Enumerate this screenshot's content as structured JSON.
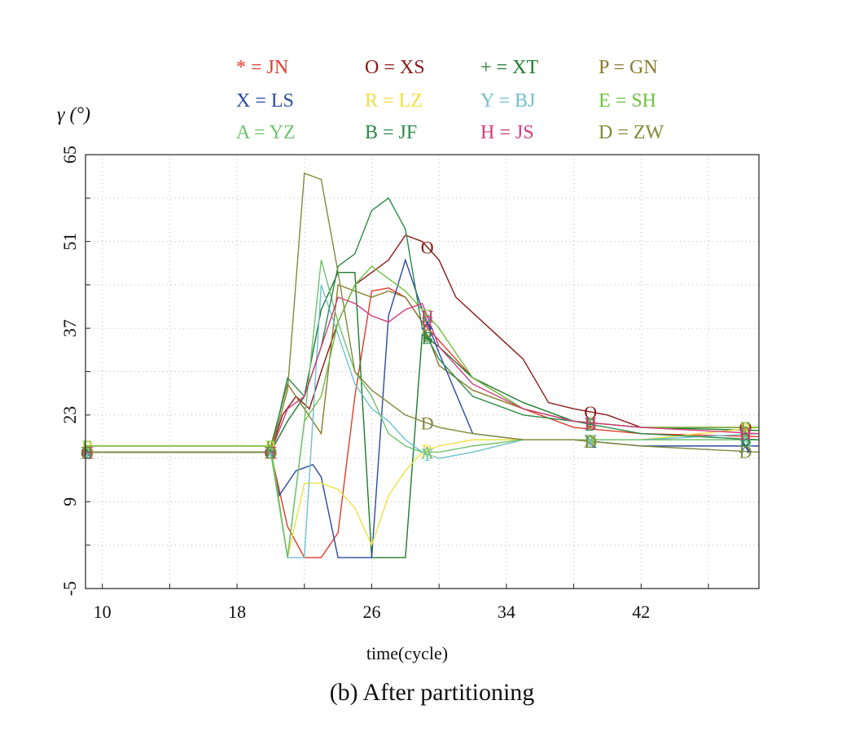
{
  "chart_data": {
    "type": "line",
    "title": "",
    "caption": "(b) After partitioning",
    "xlabel": "time(cycle)",
    "ylabel": "γ (°)",
    "xlim": [
      9,
      49
    ],
    "ylim": [
      -5,
      65
    ],
    "xticks": [
      10,
      18,
      26,
      34,
      42
    ],
    "yticks": [
      -5,
      9,
      23,
      37,
      51,
      65
    ],
    "grid": true,
    "legend_placement": "top",
    "series": [
      {
        "name": "JN",
        "marker": "*",
        "color": "#e03a2a",
        "x": [
          9,
          10,
          19,
          20,
          21,
          22,
          23,
          24,
          25,
          26,
          27,
          28,
          29,
          30,
          32,
          35,
          38,
          42,
          49
        ],
        "y": [
          17,
          17,
          17,
          17,
          5,
          0,
          0,
          4,
          26,
          43,
          43.5,
          42,
          38,
          35,
          29,
          24,
          21,
          20,
          19.5
        ]
      },
      {
        "name": "XS",
        "marker": "O",
        "color": "#8a1a1a",
        "x": [
          9,
          10,
          19,
          20,
          20.7,
          21.5,
          22.3,
          23,
          24,
          25,
          26,
          27,
          28,
          29,
          30,
          31,
          33,
          35,
          36.5,
          38,
          40,
          42,
          49
        ],
        "y": [
          17,
          17,
          17,
          17,
          23,
          26,
          24,
          30,
          38,
          44,
          46,
          48,
          52,
          51,
          48,
          42,
          37,
          32,
          25,
          24,
          23,
          21,
          21
        ]
      },
      {
        "name": "XT",
        "marker": "+",
        "color": "#1e7a2e",
        "x": [
          9,
          10,
          19,
          20,
          21,
          22,
          23,
          24,
          25,
          26,
          27,
          28,
          29,
          30,
          32,
          35,
          38,
          42,
          49
        ],
        "y": [
          17,
          17,
          17,
          17,
          22,
          26,
          40,
          46,
          46,
          0,
          0,
          0,
          36,
          34,
          29,
          25,
          22,
          21,
          20.5
        ]
      },
      {
        "name": "GN",
        "marker": "P",
        "color": "#8a7a2a",
        "x": [
          9,
          10,
          19,
          20,
          21,
          22,
          23,
          24,
          25,
          26,
          27,
          28,
          29,
          30,
          32,
          35,
          38,
          42,
          49
        ],
        "y": [
          18,
          18,
          18,
          18,
          28,
          24,
          20,
          44,
          43,
          42,
          43,
          42,
          38,
          31,
          27,
          24,
          22,
          21,
          21
        ]
      },
      {
        "name": "LS",
        "marker": "X",
        "color": "#2a4aa0",
        "x": [
          9,
          10,
          19,
          20,
          20.5,
          21.5,
          22.5,
          23,
          24,
          25,
          26,
          27,
          28,
          29,
          30,
          32,
          35,
          38,
          42,
          49
        ],
        "y": [
          17,
          17,
          17,
          17,
          10,
          14,
          15,
          13,
          0,
          0,
          0,
          39,
          48,
          40,
          33,
          20,
          19,
          19,
          18,
          18
        ]
      },
      {
        "name": "LZ",
        "marker": "R",
        "color": "#f0e040",
        "x": [
          9,
          10,
          19,
          20,
          21,
          22,
          23,
          24,
          25,
          26,
          27,
          28,
          29,
          30,
          32,
          35,
          38,
          42,
          49
        ],
        "y": [
          18,
          18,
          18,
          18,
          0,
          12,
          12,
          11,
          8,
          2,
          10,
          14,
          17,
          18,
          19,
          19,
          19,
          19,
          21
        ]
      },
      {
        "name": "BJ",
        "marker": "Y",
        "color": "#70c0d0",
        "x": [
          9,
          10,
          19,
          20,
          21,
          22,
          23,
          24,
          25,
          26,
          27,
          28,
          29,
          30,
          32,
          35,
          38,
          42,
          49
        ],
        "y": [
          17,
          17,
          17,
          17,
          0,
          0,
          44,
          36,
          28,
          24,
          22,
          19,
          17,
          16,
          17,
          19,
          19,
          19,
          20
        ]
      },
      {
        "name": "SH",
        "marker": "E",
        "color": "#70c040",
        "x": [
          9,
          10,
          19,
          20,
          21,
          22,
          23,
          24,
          25,
          26,
          27,
          28,
          29,
          30,
          32,
          35,
          38,
          42,
          49
        ],
        "y": [
          18,
          18,
          18,
          18,
          0,
          22,
          26,
          38,
          44,
          47,
          45,
          43,
          40,
          37,
          29,
          24,
          22,
          21,
          21
        ]
      },
      {
        "name": "YZ",
        "marker": "A",
        "color": "#70c070",
        "x": [
          9,
          10,
          19,
          20,
          21,
          22,
          23,
          24,
          25,
          26,
          27,
          28,
          29,
          30,
          32,
          35,
          38,
          42,
          49
        ],
        "y": [
          17,
          17,
          17,
          17,
          0,
          22,
          48,
          38,
          30,
          26,
          20,
          18,
          17,
          17,
          18,
          19,
          19,
          19,
          19
        ]
      },
      {
        "name": "JF",
        "marker": "B",
        "color": "#2a8a4a",
        "x": [
          9,
          10,
          19,
          20,
          21,
          22,
          23,
          24,
          25,
          26,
          27,
          28,
          29,
          30,
          32,
          35,
          38,
          42,
          49
        ],
        "y": [
          17,
          17,
          17,
          17,
          29,
          26,
          34,
          47,
          49,
          56,
          58,
          53,
          37,
          32,
          26,
          23,
          22,
          20,
          19
        ]
      },
      {
        "name": "JS",
        "marker": "H",
        "color": "#d03a7a",
        "x": [
          9,
          10,
          19,
          20,
          21,
          22,
          23,
          24,
          25,
          26,
          27,
          28,
          29,
          30,
          32,
          35,
          38,
          42,
          49
        ],
        "y": [
          17,
          17,
          17,
          17,
          24,
          26,
          34,
          42,
          41,
          39,
          38,
          40,
          41,
          34,
          28,
          24,
          22,
          21,
          20
        ]
      },
      {
        "name": "ZW",
        "marker": "D",
        "color": "#808a3a",
        "x": [
          9,
          10,
          19,
          20,
          21,
          22,
          23,
          24,
          25,
          26,
          27,
          28,
          29,
          30,
          32,
          35,
          38,
          42,
          49
        ],
        "y": [
          17,
          17,
          17,
          17,
          27,
          62,
          61,
          46,
          30,
          27,
          25,
          23,
          22,
          21,
          20,
          19,
          19,
          18,
          17
        ]
      }
    ]
  }
}
